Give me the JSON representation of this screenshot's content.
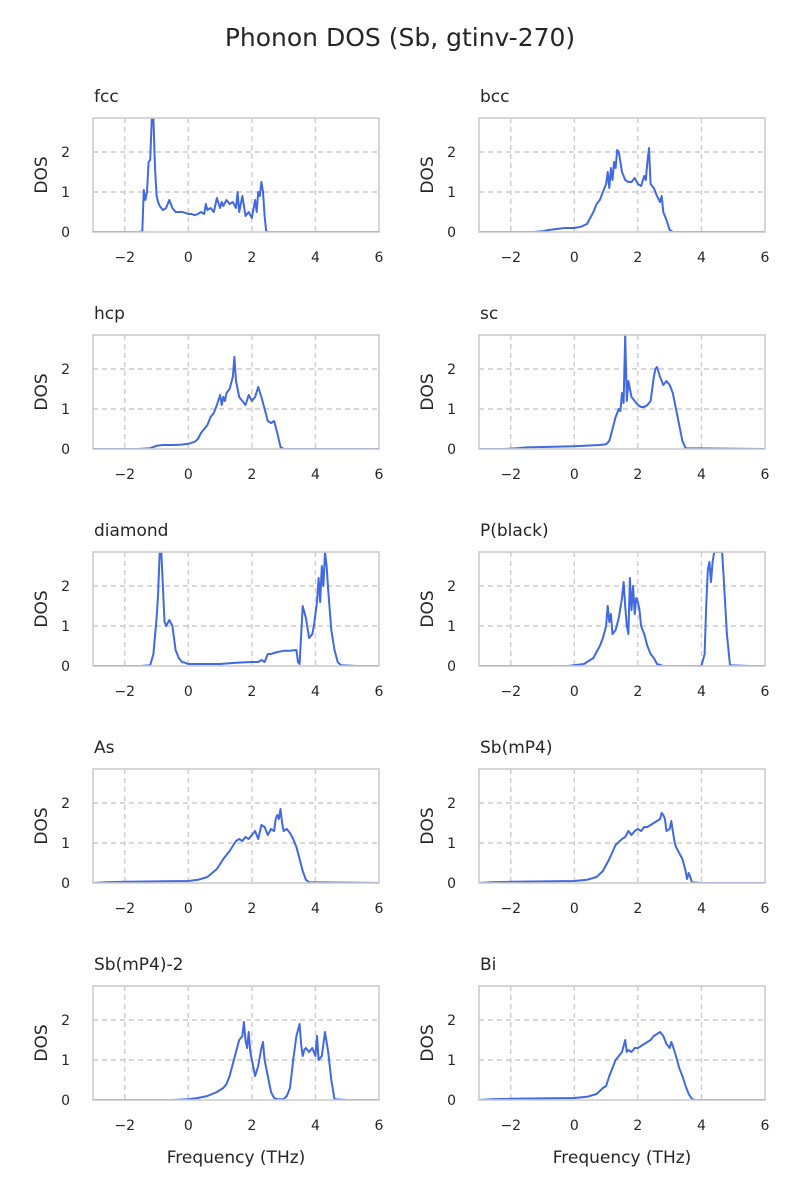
{
  "title": "Phonon DOS (Sb, gtinv-270)",
  "colors": {
    "line": "#4169e1",
    "grid": "#cccccc",
    "frame": "#cccccc",
    "text": "#262626"
  },
  "chart_data": [
    {
      "type": "line",
      "title": "fcc",
      "xlabel": "",
      "ylabel": "DOS",
      "xlim": [
        -3,
        6
      ],
      "ylim": [
        0,
        2.85
      ],
      "xticks": [
        -2,
        0,
        2,
        4,
        6
      ],
      "yticks": [
        0,
        1,
        2
      ],
      "grid": true,
      "x": [
        -3.0,
        -1.7,
        -1.55,
        -1.45,
        -1.4,
        -1.35,
        -1.3,
        -1.25,
        -1.2,
        -1.15,
        -1.1,
        -1.05,
        -1.0,
        -0.95,
        -0.9,
        -0.8,
        -0.7,
        -0.6,
        -0.5,
        -0.4,
        -0.3,
        -0.2,
        -0.1,
        0.0,
        0.1,
        0.2,
        0.3,
        0.4,
        0.5,
        0.55,
        0.6,
        0.7,
        0.8,
        0.9,
        1.0,
        1.05,
        1.1,
        1.2,
        1.3,
        1.4,
        1.5,
        1.55,
        1.6,
        1.7,
        1.8,
        1.9,
        2.0,
        2.1,
        2.15,
        2.2,
        2.25,
        2.3,
        2.35,
        2.4,
        2.45,
        2.5,
        2.8,
        6.0
      ],
      "y": [
        0,
        0,
        0,
        0.02,
        1.05,
        0.8,
        1.0,
        1.75,
        1.8,
        2.85,
        2.85,
        1.6,
        0.9,
        0.75,
        0.65,
        0.55,
        0.6,
        0.8,
        0.6,
        0.5,
        0.5,
        0.5,
        0.48,
        0.45,
        0.45,
        0.42,
        0.45,
        0.5,
        0.45,
        0.7,
        0.55,
        0.6,
        0.5,
        0.85,
        0.6,
        0.75,
        0.65,
        0.8,
        0.7,
        0.75,
        0.6,
        1.0,
        0.5,
        0.9,
        0.4,
        0.5,
        0.35,
        0.8,
        0.5,
        1.0,
        0.9,
        1.25,
        1.0,
        0.4,
        0.02,
        0,
        0,
        0
      ]
    },
    {
      "type": "line",
      "title": "bcc",
      "xlabel": "",
      "ylabel": "DOS",
      "xlim": [
        -3,
        6
      ],
      "ylim": [
        0,
        2.85
      ],
      "xticks": [
        -2,
        0,
        2,
        4,
        6
      ],
      "yticks": [
        0,
        1,
        2
      ],
      "grid": true,
      "x": [
        -3.0,
        -1.3,
        -1.0,
        -0.8,
        -0.5,
        -0.3,
        0.0,
        0.2,
        0.4,
        0.5,
        0.6,
        0.7,
        0.8,
        0.9,
        1.0,
        1.05,
        1.1,
        1.15,
        1.2,
        1.25,
        1.3,
        1.35,
        1.4,
        1.5,
        1.6,
        1.7,
        1.8,
        1.9,
        2.0,
        2.1,
        2.2,
        2.25,
        2.3,
        2.35,
        2.4,
        2.5,
        2.6,
        2.7,
        2.75,
        2.8,
        2.9,
        3.0,
        3.1,
        6.0
      ],
      "y": [
        0,
        0,
        0.02,
        0.05,
        0.08,
        0.1,
        0.1,
        0.13,
        0.2,
        0.35,
        0.5,
        0.7,
        0.8,
        1.0,
        1.2,
        1.5,
        1.1,
        1.6,
        1.3,
        1.75,
        1.6,
        2.05,
        2.0,
        1.5,
        1.3,
        1.25,
        1.25,
        1.35,
        1.2,
        1.15,
        1.4,
        1.3,
        1.75,
        2.1,
        1.2,
        1.1,
        0.9,
        0.75,
        0.9,
        0.5,
        0.3,
        0.05,
        0,
        0
      ]
    },
    {
      "type": "line",
      "title": "hcp",
      "xlabel": "",
      "ylabel": "DOS",
      "xlim": [
        -3,
        6
      ],
      "ylim": [
        0,
        2.85
      ],
      "xticks": [
        -2,
        0,
        2,
        4,
        6
      ],
      "yticks": [
        0,
        1,
        2
      ],
      "grid": true,
      "x": [
        -3.0,
        -1.6,
        -1.2,
        -1.0,
        -0.8,
        -0.5,
        -0.2,
        0.0,
        0.2,
        0.3,
        0.4,
        0.5,
        0.6,
        0.7,
        0.8,
        0.9,
        1.0,
        1.05,
        1.1,
        1.15,
        1.2,
        1.3,
        1.4,
        1.45,
        1.5,
        1.55,
        1.6,
        1.7,
        1.8,
        1.9,
        2.0,
        2.1,
        2.2,
        2.3,
        2.4,
        2.5,
        2.6,
        2.7,
        2.8,
        2.9,
        3.0,
        6.0
      ],
      "y": [
        0,
        0,
        0.02,
        0.08,
        0.1,
        0.1,
        0.11,
        0.13,
        0.18,
        0.25,
        0.4,
        0.5,
        0.6,
        0.8,
        0.9,
        1.1,
        1.35,
        1.1,
        1.3,
        1.2,
        1.4,
        1.5,
        1.8,
        2.3,
        1.7,
        1.5,
        1.3,
        1.2,
        1.1,
        1.35,
        1.2,
        1.3,
        1.55,
        1.3,
        1.0,
        0.7,
        0.65,
        0.7,
        0.4,
        0.05,
        0,
        0
      ]
    },
    {
      "type": "line",
      "title": "sc",
      "xlabel": "",
      "ylabel": "DOS",
      "xlim": [
        -3,
        6
      ],
      "ylim": [
        0,
        2.85
      ],
      "xticks": [
        -2,
        0,
        2,
        4,
        6
      ],
      "yticks": [
        0,
        1,
        2
      ],
      "grid": true,
      "x": [
        -3.0,
        -2.2,
        -1.8,
        -1.5,
        -1.0,
        0.0,
        0.8,
        1.0,
        1.1,
        1.2,
        1.3,
        1.4,
        1.45,
        1.5,
        1.55,
        1.6,
        1.65,
        1.7,
        1.8,
        1.9,
        2.0,
        2.1,
        2.2,
        2.3,
        2.4,
        2.5,
        2.55,
        2.6,
        2.7,
        2.8,
        2.9,
        3.0,
        3.1,
        3.2,
        3.3,
        3.4,
        3.5,
        6.0
      ],
      "y": [
        0,
        0,
        0.02,
        0.04,
        0.05,
        0.07,
        0.1,
        0.12,
        0.2,
        0.5,
        0.8,
        1.0,
        0.95,
        1.4,
        1.15,
        2.85,
        1.2,
        1.7,
        1.3,
        1.2,
        1.1,
        1.05,
        1.05,
        1.1,
        1.2,
        1.8,
        2.0,
        2.05,
        1.8,
        1.6,
        1.7,
        1.6,
        1.4,
        1.0,
        0.6,
        0.2,
        0.02,
        0
      ]
    },
    {
      "type": "line",
      "title": "diamond",
      "xlabel": "",
      "ylabel": "DOS",
      "xlim": [
        -3,
        6
      ],
      "ylim": [
        0,
        2.85
      ],
      "xticks": [
        -2,
        0,
        2,
        4,
        6
      ],
      "yticks": [
        0,
        1,
        2
      ],
      "grid": true,
      "x": [
        -3.0,
        -1.5,
        -1.2,
        -1.1,
        -1.0,
        -0.95,
        -0.9,
        -0.85,
        -0.8,
        -0.75,
        -0.7,
        -0.6,
        -0.5,
        -0.4,
        -0.3,
        -0.2,
        -0.1,
        0.0,
        0.2,
        0.5,
        1.0,
        1.5,
        2.0,
        2.2,
        2.3,
        2.4,
        2.5,
        2.6,
        2.8,
        3.0,
        3.2,
        3.4,
        3.45,
        3.5,
        3.6,
        3.7,
        3.8,
        3.9,
        3.95,
        4.0,
        4.05,
        4.1,
        4.15,
        4.2,
        4.25,
        4.3,
        4.35,
        4.4,
        4.5,
        4.6,
        4.7,
        4.8,
        5.3,
        6.0
      ],
      "y": [
        0,
        0,
        0.02,
        0.3,
        1.2,
        1.8,
        2.85,
        2.85,
        2.0,
        1.1,
        1.0,
        1.15,
        1.0,
        0.4,
        0.2,
        0.1,
        0.08,
        0.05,
        0.05,
        0.05,
        0.05,
        0.08,
        0.1,
        0.1,
        0.15,
        0.1,
        0.3,
        0.3,
        0.35,
        0.38,
        0.38,
        0.4,
        0.1,
        0.05,
        1.5,
        1.2,
        0.7,
        0.8,
        1.0,
        1.3,
        1.6,
        2.2,
        1.6,
        2.5,
        2.0,
        2.85,
        2.5,
        1.9,
        0.9,
        0.4,
        0.1,
        0.02,
        0,
        0
      ]
    },
    {
      "type": "line",
      "title": "P(black)",
      "xlabel": "",
      "ylabel": "DOS",
      "xlim": [
        -3,
        6
      ],
      "ylim": [
        0,
        2.85
      ],
      "xticks": [
        -2,
        0,
        2,
        4,
        6
      ],
      "yticks": [
        0,
        1,
        2
      ],
      "grid": true,
      "x": [
        -3.0,
        -0.2,
        0.3,
        0.6,
        0.7,
        0.8,
        0.9,
        1.0,
        1.05,
        1.1,
        1.15,
        1.2,
        1.3,
        1.4,
        1.5,
        1.55,
        1.6,
        1.65,
        1.7,
        1.75,
        1.8,
        1.85,
        1.9,
        1.95,
        2.0,
        2.05,
        2.1,
        2.2,
        2.3,
        2.4,
        2.5,
        2.6,
        2.8,
        4.0,
        4.1,
        4.15,
        4.2,
        4.25,
        4.3,
        4.35,
        4.4,
        4.45,
        4.5,
        4.55,
        4.6,
        4.65,
        4.7,
        4.8,
        4.9,
        5.5,
        6.0
      ],
      "y": [
        0,
        0,
        0.05,
        0.2,
        0.35,
        0.5,
        0.7,
        1.0,
        1.5,
        1.1,
        1.3,
        0.8,
        0.9,
        1.2,
        1.7,
        2.1,
        1.5,
        1.0,
        0.8,
        2.2,
        1.4,
        2.0,
        1.3,
        1.7,
        1.6,
        1.4,
        1.0,
        0.8,
        0.5,
        0.3,
        0.2,
        0.05,
        0,
        0,
        0.3,
        1.5,
        2.4,
        2.6,
        2.1,
        2.6,
        2.85,
        2.85,
        2.85,
        2.85,
        2.85,
        2.85,
        2.2,
        0.8,
        0.02,
        0,
        0
      ]
    },
    {
      "type": "line",
      "title": "As",
      "xlabel": "",
      "ylabel": "DOS",
      "xlim": [
        -3,
        6
      ],
      "ylim": [
        0,
        2.85
      ],
      "xticks": [
        -2,
        0,
        2,
        4,
        6
      ],
      "yticks": [
        0,
        1,
        2
      ],
      "grid": true,
      "x": [
        -3.0,
        -2.6,
        -2.0,
        -1.0,
        0.0,
        0.3,
        0.6,
        0.9,
        1.1,
        1.3,
        1.5,
        1.6,
        1.7,
        1.8,
        1.9,
        2.0,
        2.1,
        2.2,
        2.3,
        2.4,
        2.5,
        2.6,
        2.7,
        2.75,
        2.8,
        2.85,
        2.9,
        2.95,
        3.0,
        3.1,
        3.2,
        3.3,
        3.4,
        3.5,
        3.6,
        3.7,
        3.8,
        6.0
      ],
      "y": [
        0,
        0.02,
        0.03,
        0.04,
        0.05,
        0.08,
        0.15,
        0.35,
        0.6,
        0.8,
        1.05,
        1.1,
        1.05,
        1.15,
        1.1,
        1.2,
        1.3,
        1.1,
        1.45,
        1.4,
        1.2,
        1.35,
        1.3,
        1.6,
        1.7,
        1.6,
        1.85,
        1.5,
        1.3,
        1.35,
        1.25,
        1.1,
        0.9,
        0.6,
        0.3,
        0.08,
        0.02,
        0
      ]
    },
    {
      "type": "line",
      "title": "Sb(mP4)",
      "xlabel": "",
      "ylabel": "DOS",
      "xlim": [
        -3,
        6
      ],
      "ylim": [
        0,
        2.85
      ],
      "xticks": [
        -2,
        0,
        2,
        4,
        6
      ],
      "yticks": [
        0,
        1,
        2
      ],
      "grid": true,
      "x": [
        -3.0,
        -2.6,
        -2.0,
        -1.0,
        0.0,
        0.4,
        0.7,
        0.9,
        1.1,
        1.3,
        1.5,
        1.6,
        1.7,
        1.8,
        1.9,
        2.0,
        2.1,
        2.2,
        2.3,
        2.4,
        2.5,
        2.6,
        2.7,
        2.75,
        2.8,
        2.85,
        2.9,
        3.0,
        3.05,
        3.1,
        3.15,
        3.2,
        3.3,
        3.4,
        3.5,
        3.55,
        3.6,
        3.65,
        3.7,
        4.0,
        6.0
      ],
      "y": [
        0,
        0.02,
        0.03,
        0.04,
        0.05,
        0.08,
        0.15,
        0.3,
        0.6,
        0.95,
        1.1,
        1.15,
        1.3,
        1.2,
        1.3,
        1.35,
        1.3,
        1.4,
        1.4,
        1.45,
        1.5,
        1.55,
        1.6,
        1.75,
        1.7,
        1.6,
        1.3,
        1.35,
        1.55,
        1.3,
        1.05,
        0.9,
        0.75,
        0.6,
        0.3,
        0.1,
        0.25,
        0.15,
        0.02,
        0,
        0
      ]
    },
    {
      "type": "line",
      "title": "Sb(mP4)-2",
      "xlabel": "Frequency (THz)",
      "ylabel": "DOS",
      "xlim": [
        -3,
        6
      ],
      "ylim": [
        0,
        2.85
      ],
      "xticks": [
        -2,
        0,
        2,
        4,
        6
      ],
      "yticks": [
        0,
        1,
        2
      ],
      "grid": true,
      "x": [
        -3.0,
        -0.5,
        0.0,
        0.3,
        0.6,
        0.9,
        1.1,
        1.2,
        1.3,
        1.4,
        1.5,
        1.6,
        1.7,
        1.75,
        1.8,
        1.85,
        1.9,
        1.95,
        2.0,
        2.1,
        2.2,
        2.3,
        2.35,
        2.4,
        2.5,
        2.6,
        2.7,
        2.8,
        3.0,
        3.1,
        3.2,
        3.3,
        3.4,
        3.5,
        3.55,
        3.6,
        3.65,
        3.7,
        3.8,
        3.9,
        4.0,
        4.05,
        4.1,
        4.2,
        4.3,
        4.4,
        4.5,
        4.6,
        5.0,
        6.0
      ],
      "y": [
        0,
        0,
        0.02,
        0.05,
        0.1,
        0.2,
        0.3,
        0.4,
        0.6,
        0.9,
        1.2,
        1.5,
        1.6,
        1.95,
        1.5,
        1.3,
        1.7,
        1.2,
        1.0,
        0.6,
        0.85,
        1.3,
        1.45,
        1.0,
        0.6,
        0.2,
        0.05,
        0.02,
        0.02,
        0.1,
        0.3,
        1.0,
        1.6,
        1.9,
        1.4,
        1.1,
        1.25,
        1.3,
        1.2,
        1.3,
        1.1,
        1.6,
        1.0,
        1.1,
        1.7,
        1.2,
        0.5,
        0.02,
        0,
        0
      ]
    },
    {
      "type": "line",
      "title": "Bi",
      "xlabel": "Frequency (THz)",
      "ylabel": "DOS",
      "xlim": [
        -3,
        6
      ],
      "ylim": [
        0,
        2.85
      ],
      "xticks": [
        -2,
        0,
        2,
        4,
        6
      ],
      "yticks": [
        0,
        1,
        2
      ],
      "grid": true,
      "x": [
        -3.0,
        -2.6,
        -2.0,
        -1.0,
        0.0,
        0.4,
        0.7,
        0.9,
        1.0,
        1.1,
        1.2,
        1.3,
        1.4,
        1.5,
        1.6,
        1.65,
        1.7,
        1.8,
        1.9,
        2.0,
        2.1,
        2.2,
        2.3,
        2.4,
        2.5,
        2.6,
        2.7,
        2.8,
        2.9,
        3.0,
        3.05,
        3.1,
        3.2,
        3.3,
        3.4,
        3.5,
        3.6,
        3.7,
        3.8,
        6.0
      ],
      "y": [
        0,
        0.02,
        0.03,
        0.04,
        0.05,
        0.08,
        0.15,
        0.3,
        0.35,
        0.6,
        0.8,
        1.0,
        1.1,
        1.2,
        1.5,
        1.2,
        1.25,
        1.2,
        1.3,
        1.3,
        1.35,
        1.4,
        1.45,
        1.5,
        1.6,
        1.65,
        1.7,
        1.6,
        1.4,
        1.3,
        1.45,
        1.35,
        1.1,
        0.8,
        0.6,
        0.35,
        0.15,
        0.03,
        0,
        0
      ]
    }
  ]
}
